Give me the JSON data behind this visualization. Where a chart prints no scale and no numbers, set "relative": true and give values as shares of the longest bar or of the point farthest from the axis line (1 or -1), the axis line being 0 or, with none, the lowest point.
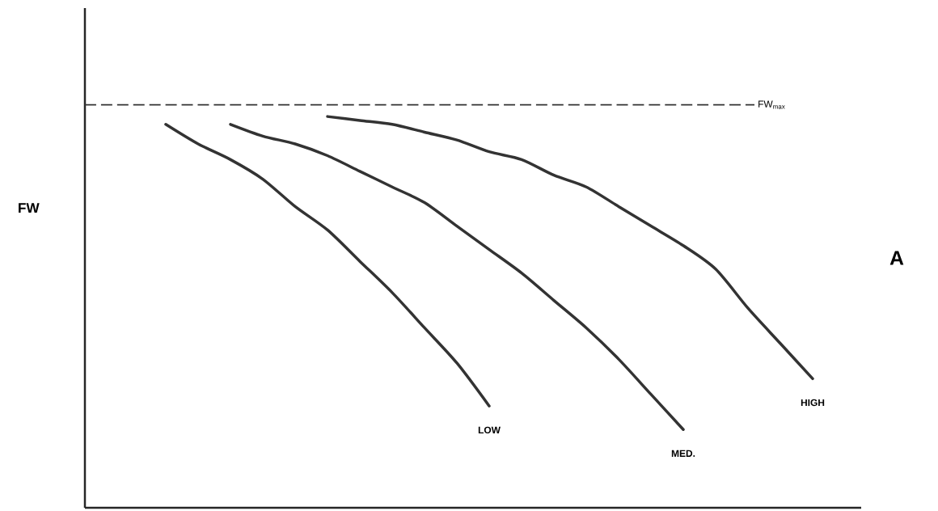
{
  "chart_data": {
    "type": "line",
    "relative": true,
    "ylabel": "FW",
    "categories": [
      null,
      null,
      null,
      null,
      null,
      null,
      null,
      null,
      null,
      null,
      null,
      null,
      null,
      null,
      null,
      null,
      null,
      null,
      null,
      null,
      null,
      null,
      null,
      null
    ],
    "series": [
      {
        "name": "LOW",
        "color": "#333333",
        "values": [
          null,
          null,
          0.98,
          0.93,
          0.89,
          0.84,
          0.77,
          0.71,
          0.63,
          0.55,
          0.46,
          0.37,
          0.26,
          null,
          null,
          null,
          null,
          null,
          null,
          null,
          null,
          null,
          null,
          null
        ]
      },
      {
        "name": "MED.",
        "color": "#333333",
        "values": [
          null,
          null,
          null,
          null,
          0.98,
          0.95,
          0.93,
          0.9,
          0.86,
          0.82,
          0.78,
          0.72,
          0.66,
          0.6,
          0.53,
          0.46,
          0.38,
          0.29,
          0.2,
          null,
          null,
          null,
          null,
          null
        ]
      },
      {
        "name": "HIGH",
        "color": "#333333",
        "values": [
          null,
          null,
          null,
          null,
          null,
          null,
          null,
          1.0,
          0.99,
          0.98,
          0.96,
          0.94,
          0.91,
          0.89,
          0.85,
          0.82,
          0.77,
          0.72,
          0.67,
          0.61,
          0.51,
          0.42,
          0.33,
          null
        ]
      }
    ],
    "ref_lines": [
      {
        "axis": "y",
        "value": 1.03,
        "label": "FW$_{max}$",
        "color": "#333333",
        "line_style": "dashed"
      }
    ],
    "annotations": [
      "A"
    ],
    "marker": "none",
    "line_style": "solid"
  }
}
